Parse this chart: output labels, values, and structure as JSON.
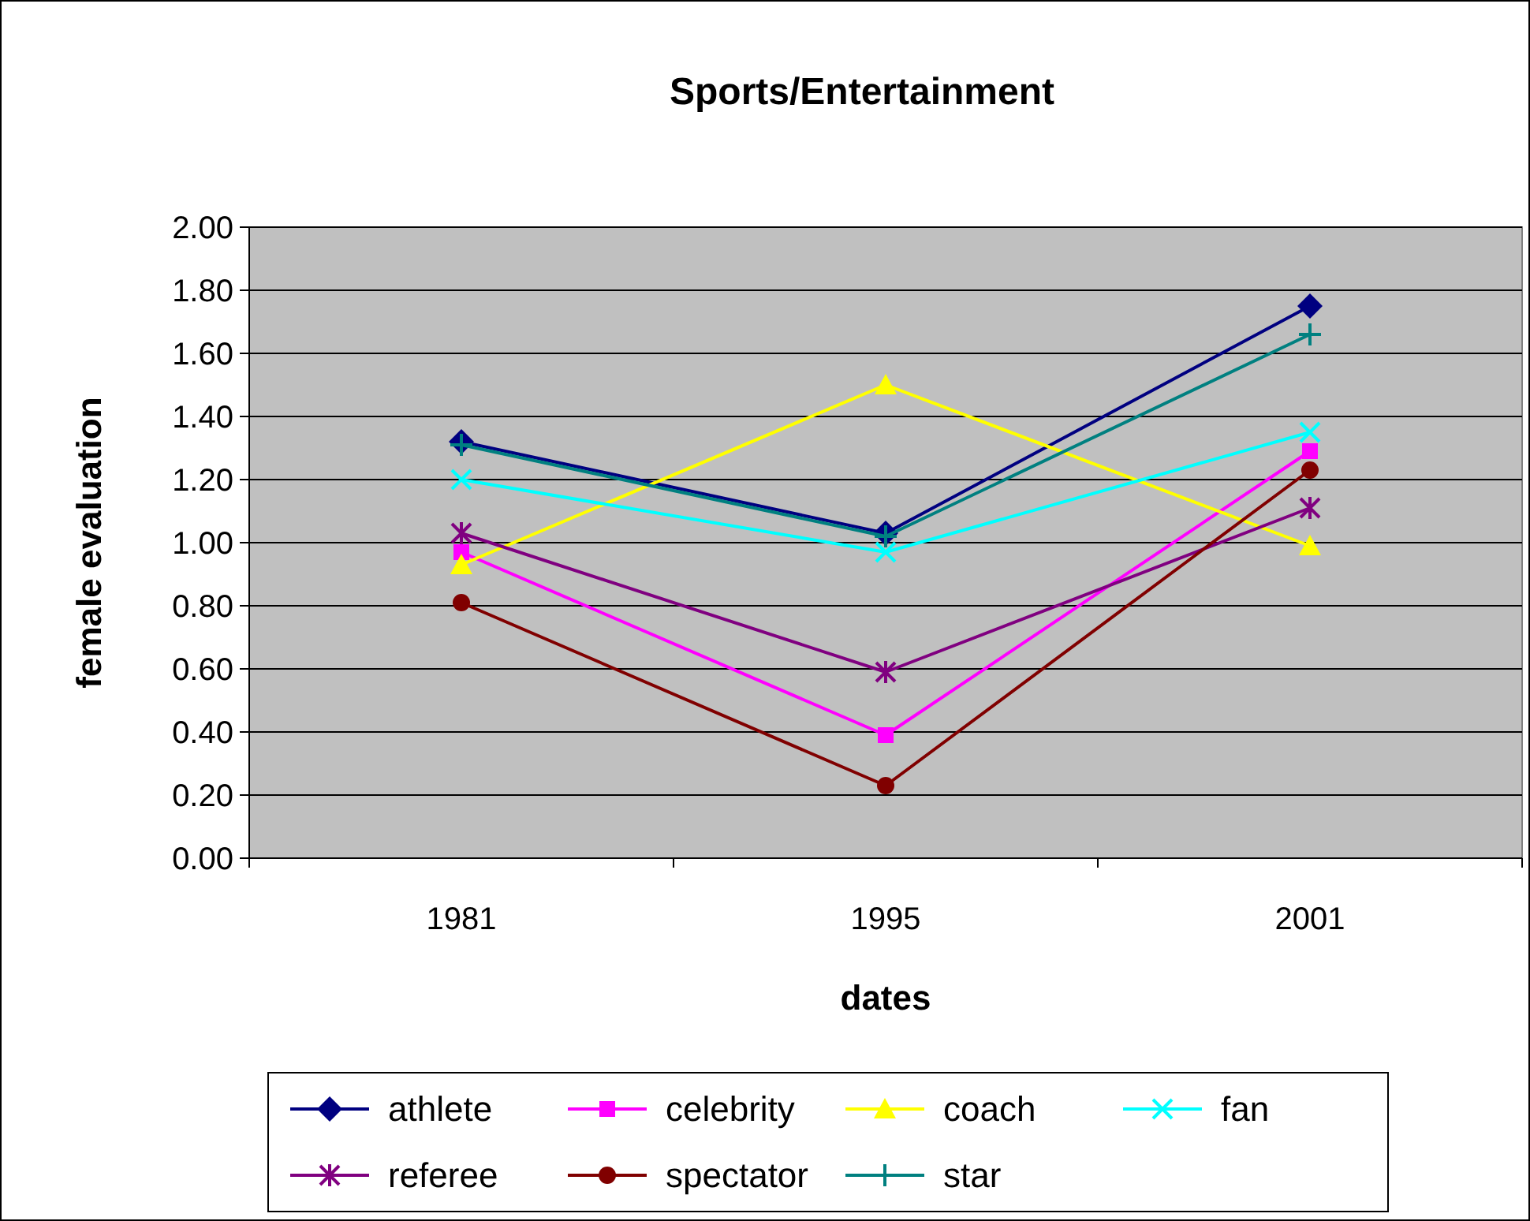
{
  "chart_data": {
    "type": "line",
    "title": "Sports/Entertainment",
    "xlabel": "dates",
    "ylabel": "female evaluation",
    "categories": [
      "1981",
      "1995",
      "2001"
    ],
    "series": [
      {
        "name": "athlete",
        "color": "#000080",
        "marker": "diamond",
        "values": [
          1.32,
          1.03,
          1.75
        ]
      },
      {
        "name": "celebrity",
        "color": "#ff00ff",
        "marker": "square",
        "values": [
          0.97,
          0.39,
          1.29
        ]
      },
      {
        "name": "coach",
        "color": "#ffff00",
        "marker": "triangle",
        "values": [
          0.93,
          1.5,
          0.99
        ]
      },
      {
        "name": "fan",
        "color": "#00ffff",
        "marker": "cross",
        "values": [
          1.2,
          0.97,
          1.35
        ]
      },
      {
        "name": "referee",
        "color": "#800080",
        "marker": "cross",
        "values": [
          1.03,
          0.59,
          1.11
        ]
      },
      {
        "name": "spectator",
        "color": "#800000",
        "marker": "circle",
        "values": [
          0.81,
          0.23,
          1.23
        ]
      },
      {
        "name": "star",
        "color": "#008080",
        "marker": "cross",
        "values": [
          1.31,
          1.02,
          1.66
        ]
      }
    ],
    "ylim": [
      0,
      2
    ],
    "yticks": [
      {
        "value": 0,
        "label": "0.00"
      },
      {
        "value": 0.2,
        "label": "0.20"
      },
      {
        "value": 0.4,
        "label": "0.40"
      },
      {
        "value": 0.6,
        "label": "0.60"
      },
      {
        "value": 0.8,
        "label": "0.80"
      },
      {
        "value": 1,
        "label": "1.00"
      },
      {
        "value": 1.2,
        "label": "1.20"
      },
      {
        "value": 1.4,
        "label": "1.40"
      },
      {
        "value": 1.6,
        "label": "1.60"
      },
      {
        "value": 1.8,
        "label": "1.80"
      },
      {
        "value": 2,
        "label": "2.00"
      }
    ],
    "grid": "y",
    "legend": "bottom",
    "line_style": "solid"
  }
}
